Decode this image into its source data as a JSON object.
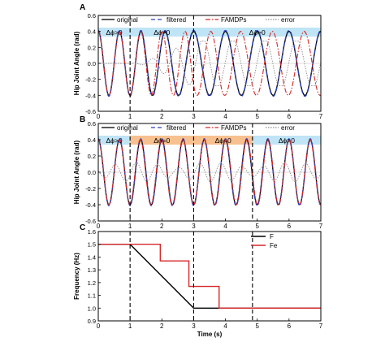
{
  "chart_data": [
    {
      "panel": "A",
      "type": "line",
      "xlabel": "",
      "ylabel": "Hip Joint Angle (rad)",
      "xlim": [
        0,
        7
      ],
      "ylim": [
        -0.6,
        0.6
      ],
      "xticks": [
        "0",
        "1",
        "2",
        "3",
        "4",
        "5",
        "6",
        "7"
      ],
      "yticks": [
        "-0.6",
        "-0.4",
        "-0.2",
        "0.0",
        "0.2",
        "0.4",
        "0.6"
      ],
      "grid": false,
      "legend": [
        "original",
        "filtered",
        "FAMDPs",
        "error"
      ],
      "legend_position": "top",
      "phase_boundaries": [
        1,
        3
      ],
      "phase_labels": [
        "Δϕ>0",
        "Δϕ>0",
        "Δϕ>0"
      ],
      "phase_colors": [
        "#bfe4f5",
        "#bfe4f5",
        "#bfe4f5"
      ],
      "series": [
        {
          "name": "original",
          "color": "#000000",
          "amplitude": 0.4,
          "freq_start": 1.5,
          "freq_end": 1.0,
          "ramp": [
            1,
            3
          ]
        },
        {
          "name": "filtered",
          "color": "#2b3fbf",
          "amplitude": 0.4,
          "freq_start": 1.5,
          "freq_end": 1.0,
          "ramp": [
            1,
            3
          ]
        },
        {
          "name": "FAMDPs",
          "color": "#d62728",
          "amplitude": 0.4,
          "freq_steps": [
            [
              0,
              1.5
            ],
            [
              2,
              1.37
            ],
            [
              3,
              1.17
            ],
            [
              3.9,
              1.0
            ]
          ]
        },
        {
          "name": "error",
          "color": "#8a8a8a",
          "amplitude_max": 0.28
        }
      ]
    },
    {
      "panel": "B",
      "type": "line",
      "xlabel": "",
      "ylabel": "Hip Joint Angle (rad)",
      "xlim": [
        0,
        7
      ],
      "ylim": [
        -0.6,
        0.6
      ],
      "xticks": [
        "0",
        "1",
        "2",
        "3",
        "4",
        "5",
        "6",
        "7"
      ],
      "yticks": [
        "-0.6",
        "-0.4",
        "-0.2",
        "0.0",
        "0.2",
        "0.4",
        "0.6"
      ],
      "grid": false,
      "legend": [
        "original",
        "filtered",
        "FAMDPs",
        "error"
      ],
      "legend_position": "top",
      "phase_boundaries": [
        1,
        3,
        4.85
      ],
      "phase_labels": [
        "Δϕ>0",
        "Δϕ=0",
        "Δϕ=0",
        "Δϕ>0"
      ],
      "phase_colors": [
        "#bfe4f5",
        "#f7c08f",
        "#f7c08f",
        "#bfe4f5"
      ],
      "series": [
        {
          "name": "original",
          "color": "#000000",
          "amplitude": 0.4,
          "freq": 1.5
        },
        {
          "name": "filtered",
          "color": "#2b3fbf",
          "amplitude": 0.4,
          "freq": 1.5
        },
        {
          "name": "FAMDPs",
          "color": "#d62728",
          "amplitude": 0.4,
          "freq": 1.5
        },
        {
          "name": "error",
          "color": "#8a8a8a",
          "amplitude_max": 0.12
        }
      ]
    },
    {
      "panel": "C",
      "type": "line",
      "xlabel": "Time (s)",
      "ylabel": "Frequency (Hz)",
      "xlim": [
        0,
        7
      ],
      "ylim": [
        0.9,
        1.6
      ],
      "xticks": [
        "0",
        "1",
        "2",
        "3",
        "4",
        "5",
        "6",
        "7"
      ],
      "yticks": [
        "0.9",
        "1.0",
        "1.1",
        "1.2",
        "1.3",
        "1.4",
        "1.5",
        "1.6"
      ],
      "grid": false,
      "legend": [
        "F",
        "Fe"
      ],
      "legend_position": "top-right",
      "markers": [
        1,
        3,
        4.85
      ],
      "series": [
        {
          "name": "F",
          "color": "#000000",
          "x": [
            0,
            1,
            3,
            7
          ],
          "y": [
            1.5,
            1.5,
            1.0,
            1.0
          ]
        },
        {
          "name": "Fe",
          "color": "#d62728",
          "x": [
            0,
            1.95,
            1.95,
            2.85,
            2.85,
            3.8,
            3.8,
            7
          ],
          "y": [
            1.5,
            1.5,
            1.37,
            1.37,
            1.17,
            1.17,
            1.0,
            1.0
          ]
        }
      ]
    }
  ]
}
